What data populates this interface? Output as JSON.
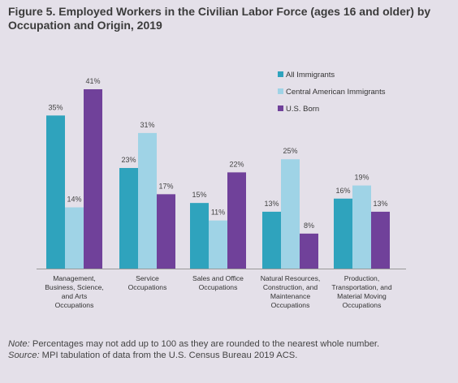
{
  "title": "Figure 5. Employed Workers in the Civilian Labor Force (ages 16 and older) by Occupation and Origin, 2019",
  "note_label": "Note:",
  "note_text": " Percentages may not add up to 100 as they are rounded to the nearest whole number.",
  "source_label": "Source:",
  "source_text": " MPI tabulation of data from the U.S. Census Bureau 2019 ACS.",
  "chart_data": {
    "type": "bar",
    "categories": [
      [
        "Management,",
        "Business, Science,",
        "and Arts",
        "Occupations"
      ],
      [
        "Service",
        "Occupations"
      ],
      [
        "Sales and Office",
        "Occupations"
      ],
      [
        "Natural Resources,",
        "Construction, and",
        "Maintenance",
        "Occupations"
      ],
      [
        "Production,",
        "Transportation, and",
        "Material Moving",
        "Occupations"
      ]
    ],
    "series": [
      {
        "name": "All Immigrants",
        "color": "#2fa3bd",
        "values": [
          35,
          23,
          15,
          13,
          16
        ],
        "labels": [
          "35%",
          "23%",
          "15%",
          "13%",
          "16%"
        ]
      },
      {
        "name": "Central American Immigrants",
        "color": "#9fd3e6",
        "values": [
          14,
          31,
          11,
          25,
          19
        ],
        "labels": [
          "14%",
          "31%",
          "11%",
          "25%",
          "19%"
        ]
      },
      {
        "name": "U.S. Born",
        "color": "#70419a",
        "values": [
          41,
          17,
          22,
          8,
          13
        ],
        "labels": [
          "41%",
          "17%",
          "22%",
          "8%",
          "13%"
        ]
      }
    ],
    "ylim": [
      0,
      41
    ],
    "legend_position": "top-right",
    "grid": false
  }
}
